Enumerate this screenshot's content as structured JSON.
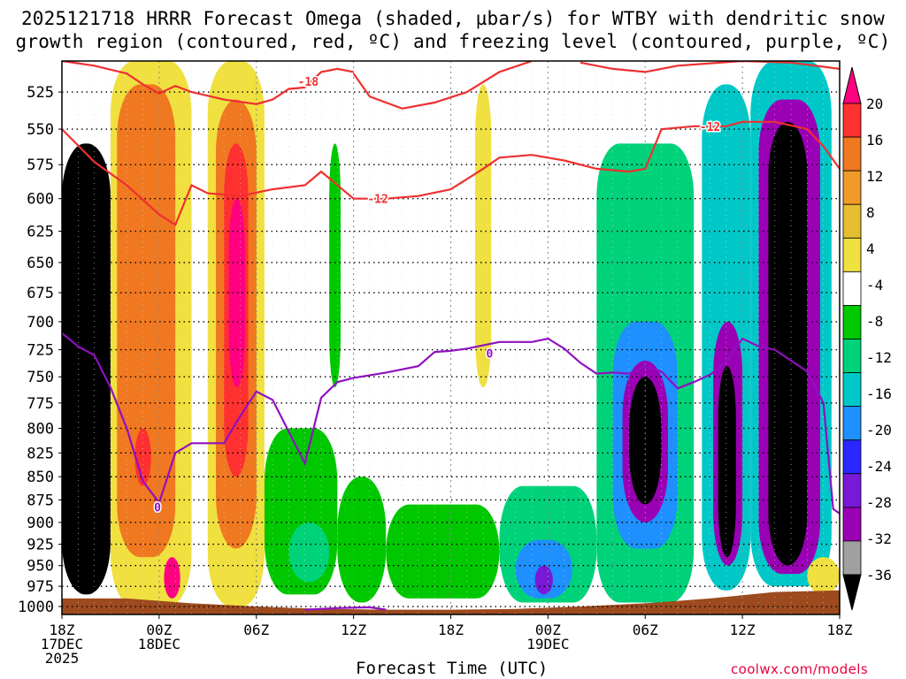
{
  "title": {
    "line1": "2025121718 HRRR Forecast Omega (shaded, µbar/s) for WTBY with dendritic snow",
    "line2": "growth region (contoured, red, ºC) and freezing level (contoured, purple, ºC)"
  },
  "credit": "coolwx.com/models",
  "chart_data": {
    "type": "heatmap",
    "title": "2025121718 HRRR Forecast Omega (shaded, µbar/s) for WTBY with dendritic snow growth region (contoured, red, ºC) and freezing level (contoured, purple, ºC)",
    "xlabel": "Forecast Time (UTC)",
    "ylabel": "",
    "x_ticks": [
      {
        "t": 0,
        "l1": "18Z",
        "l2": "17DEC",
        "l3": "2025"
      },
      {
        "t": 6,
        "l1": "00Z",
        "l2": "18DEC",
        "l3": ""
      },
      {
        "t": 12,
        "l1": "06Z",
        "l2": "",
        "l3": ""
      },
      {
        "t": 18,
        "l1": "12Z",
        "l2": "",
        "l3": ""
      },
      {
        "t": 24,
        "l1": "18Z",
        "l2": "",
        "l3": ""
      },
      {
        "t": 30,
        "l1": "00Z",
        "l2": "19DEC",
        "l3": ""
      },
      {
        "t": 36,
        "l1": "06Z",
        "l2": "",
        "l3": ""
      },
      {
        "t": 42,
        "l1": "12Z",
        "l2": "",
        "l3": ""
      },
      {
        "t": 48,
        "l1": "18Z",
        "l2": "",
        "l3": ""
      }
    ],
    "xlim_hours": [
      0,
      48
    ],
    "y_ticks": [
      525,
      550,
      575,
      600,
      625,
      650,
      675,
      700,
      725,
      750,
      775,
      800,
      825,
      850,
      875,
      900,
      925,
      950,
      975,
      1000
    ],
    "ylim_hpa": [
      505,
      1010
    ],
    "y_scale": "log-pressure",
    "grid": true,
    "colorbar": {
      "labels": [
        20,
        16,
        12,
        8,
        4,
        -4,
        -8,
        -12,
        -16,
        -20,
        -24,
        -28,
        -32,
        -36
      ],
      "colors": [
        "#ff0080",
        "#ff3030",
        "#f07820",
        "#f09a2a",
        "#e6be32",
        "#f0e040",
        "#ffffff",
        "#00c800",
        "#00d27a",
        "#00c8c8",
        "#1e90ff",
        "#2828ff",
        "#7a18d8",
        "#9a00b4",
        "#a0a0a0",
        "#000000"
      ]
    },
    "omega_cells": [
      {
        "t0": 0.0,
        "t1": 3.0,
        "p0": 560,
        "p1": 985,
        "v": -36
      },
      {
        "t0": 0.3,
        "t1": 2.6,
        "p0": 600,
        "p1": 950,
        "v": -40
      },
      {
        "t0": 3.0,
        "t1": 8.0,
        "p0": 505,
        "p1": 1000,
        "v": 6
      },
      {
        "t0": 3.4,
        "t1": 7.0,
        "p0": 520,
        "p1": 940,
        "v": 13
      },
      {
        "t0": 4.5,
        "t1": 5.5,
        "p0": 800,
        "p1": 860,
        "v": 17
      },
      {
        "t0": 6.3,
        "t1": 7.3,
        "p0": 940,
        "p1": 990,
        "v": 21
      },
      {
        "t0": 9.0,
        "t1": 12.5,
        "p0": 505,
        "p1": 1000,
        "v": 6
      },
      {
        "t0": 9.5,
        "t1": 12.0,
        "p0": 530,
        "p1": 930,
        "v": 13
      },
      {
        "t0": 10.0,
        "t1": 11.5,
        "p0": 560,
        "p1": 850,
        "v": 18
      },
      {
        "t0": 10.3,
        "t1": 11.3,
        "p0": 600,
        "p1": 760,
        "v": 22
      },
      {
        "t0": 12.5,
        "t1": 17.0,
        "p0": 800,
        "p1": 985,
        "v": -6
      },
      {
        "t0": 14.0,
        "t1": 16.5,
        "p0": 900,
        "p1": 970,
        "v": -10
      },
      {
        "t0": 16.5,
        "t1": 17.2,
        "p0": 560,
        "p1": 760,
        "v": -6
      },
      {
        "t0": 17.0,
        "t1": 20.0,
        "p0": 850,
        "p1": 995,
        "v": -6
      },
      {
        "t0": 20.0,
        "t1": 27.0,
        "p0": 880,
        "p1": 990,
        "v": -7
      },
      {
        "t0": 25.5,
        "t1": 26.5,
        "p0": 520,
        "p1": 760,
        "v": 5
      },
      {
        "t0": 27.0,
        "t1": 33.0,
        "p0": 860,
        "p1": 995,
        "v": -9
      },
      {
        "t0": 28.0,
        "t1": 31.5,
        "p0": 920,
        "p1": 990,
        "v": -16
      },
      {
        "t0": 29.2,
        "t1": 30.3,
        "p0": 950,
        "p1": 985,
        "v": -26
      },
      {
        "t0": 33.0,
        "t1": 39.0,
        "p0": 560,
        "p1": 995,
        "v": -8
      },
      {
        "t0": 34.0,
        "t1": 38.0,
        "p0": 700,
        "p1": 930,
        "v": -16
      },
      {
        "t0": 34.6,
        "t1": 37.4,
        "p0": 735,
        "p1": 900,
        "v": -28
      },
      {
        "t0": 35.0,
        "t1": 37.0,
        "p0": 750,
        "p1": 880,
        "v": -40
      },
      {
        "t0": 39.5,
        "t1": 42.5,
        "p0": 520,
        "p1": 980,
        "v": -12
      },
      {
        "t0": 40.2,
        "t1": 42.0,
        "p0": 700,
        "p1": 950,
        "v": -28
      },
      {
        "t0": 40.5,
        "t1": 41.6,
        "p0": 740,
        "p1": 940,
        "v": -40
      },
      {
        "t0": 42.5,
        "t1": 47.5,
        "p0": 505,
        "p1": 975,
        "v": -14
      },
      {
        "t0": 43.0,
        "t1": 46.8,
        "p0": 530,
        "p1": 960,
        "v": -28
      },
      {
        "t0": 43.6,
        "t1": 46.0,
        "p0": 545,
        "p1": 950,
        "v": -40
      },
      {
        "t0": 46.0,
        "t1": 48.0,
        "p0": 940,
        "p1": 985,
        "v": 6
      }
    ],
    "contours": [
      {
        "name": "-18",
        "color": "#ee3030",
        "label": "-18",
        "points": [
          [
            0,
            505
          ],
          [
            2,
            508
          ],
          [
            4,
            513
          ],
          [
            5,
            520
          ],
          [
            6,
            526
          ],
          [
            7,
            521
          ],
          [
            8,
            525
          ],
          [
            10,
            530
          ],
          [
            12,
            533
          ],
          [
            13,
            530
          ],
          [
            14,
            523
          ],
          [
            15,
            522
          ],
          [
            16,
            512
          ],
          [
            17,
            510
          ],
          [
            18,
            512
          ]
        ]
      },
      {
        "name": "-18b",
        "color": "#ee3030",
        "label": "",
        "points": [
          [
            18,
            513
          ],
          [
            19,
            528
          ],
          [
            21,
            536
          ],
          [
            23,
            532
          ],
          [
            25,
            525
          ],
          [
            27,
            512
          ],
          [
            29,
            505
          ]
        ]
      },
      {
        "name": "-18c",
        "color": "#ee3030",
        "label": "",
        "points": [
          [
            32,
            506
          ],
          [
            34,
            510
          ],
          [
            36,
            512
          ],
          [
            38,
            508
          ],
          [
            42,
            505
          ],
          [
            45,
            506
          ],
          [
            48,
            510
          ]
        ]
      },
      {
        "name": "-12",
        "color": "#ee3030",
        "label": "-12",
        "points": [
          [
            0,
            550
          ],
          [
            2,
            573
          ],
          [
            4,
            590
          ],
          [
            6,
            612
          ],
          [
            7,
            620
          ],
          [
            8,
            590
          ],
          [
            9,
            596
          ],
          [
            11,
            598
          ],
          [
            13,
            593
          ],
          [
            15,
            590
          ],
          [
            16,
            580
          ],
          [
            18,
            600
          ],
          [
            20,
            600
          ],
          [
            22,
            598
          ],
          [
            24,
            593
          ],
          [
            26,
            578
          ],
          [
            27,
            570
          ],
          [
            29,
            568
          ],
          [
            31,
            572
          ],
          [
            33,
            578
          ],
          [
            35,
            580
          ],
          [
            36,
            578
          ],
          [
            37,
            550
          ],
          [
            39,
            548
          ],
          [
            41,
            548
          ],
          [
            42,
            545
          ],
          [
            44,
            545
          ],
          [
            46,
            550
          ],
          [
            47,
            562
          ],
          [
            48,
            578
          ]
        ]
      },
      {
        "name": "0",
        "color": "#9010c0",
        "label": "0",
        "points": [
          [
            0,
            710
          ],
          [
            1,
            722
          ],
          [
            2,
            730
          ],
          [
            3,
            760
          ],
          [
            4,
            800
          ],
          [
            5,
            855
          ],
          [
            6,
            878
          ],
          [
            7,
            825
          ],
          [
            8,
            815
          ],
          [
            9,
            815
          ],
          [
            10,
            815
          ],
          [
            11,
            788
          ],
          [
            12,
            764
          ],
          [
            13,
            772
          ],
          [
            15,
            836
          ],
          [
            16,
            770
          ],
          [
            17,
            755
          ],
          [
            18,
            751
          ],
          [
            20,
            746
          ],
          [
            22,
            740
          ],
          [
            23,
            727
          ],
          [
            24,
            726
          ],
          [
            25,
            724
          ],
          [
            27,
            718
          ],
          [
            29,
            718
          ],
          [
            30,
            715
          ],
          [
            31,
            724
          ],
          [
            32,
            737
          ],
          [
            33,
            747
          ],
          [
            34,
            746
          ],
          [
            35,
            747
          ],
          [
            36,
            740
          ],
          [
            37,
            745
          ],
          [
            38,
            761
          ],
          [
            39,
            755
          ],
          [
            40,
            748
          ],
          [
            41,
            736
          ],
          [
            42,
            715
          ],
          [
            43,
            722
          ],
          [
            44,
            725
          ],
          [
            46,
            745
          ],
          [
            47,
            775
          ],
          [
            47.6,
            885
          ],
          [
            48,
            890
          ]
        ]
      },
      {
        "name": "0b",
        "color": "#9010c0",
        "label": "",
        "points": [
          [
            15,
            1004
          ],
          [
            17,
            1002
          ],
          [
            19,
            1001
          ],
          [
            20,
            1004
          ]
        ]
      }
    ],
    "terrain": [
      [
        0,
        990
      ],
      [
        4,
        990
      ],
      [
        8,
        996
      ],
      [
        12,
        1000
      ],
      [
        16,
        1003
      ],
      [
        20,
        1004
      ],
      [
        24,
        1004
      ],
      [
        28,
        1003
      ],
      [
        32,
        1000
      ],
      [
        36,
        996
      ],
      [
        40,
        990
      ],
      [
        44,
        982
      ],
      [
        48,
        980
      ]
    ]
  }
}
